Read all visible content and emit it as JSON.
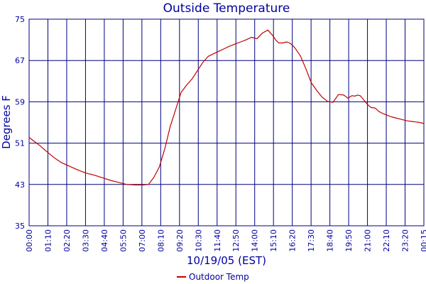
{
  "chart_data": {
    "type": "line",
    "title": "Outside Temperature",
    "xlabel": "10/19/05 (EST)",
    "ylabel": "Degrees F",
    "ylim": [
      35,
      75
    ],
    "yticks": [
      "35",
      "43",
      "51",
      "59",
      "67",
      "75"
    ],
    "xticks": [
      "00:00",
      "01:10",
      "02:20",
      "03:30",
      "04:40",
      "05:50",
      "07:00",
      "08:10",
      "09:20",
      "10:30",
      "11:40",
      "12:50",
      "14:00",
      "15:10",
      "16:20",
      "17:30",
      "18:40",
      "19:50",
      "21:00",
      "22:10",
      "23:20",
      "00:15"
    ],
    "grid": true,
    "legend_position": "bottom-center",
    "series": [
      {
        "name": "Outdoor Temp",
        "color": "#c00000",
        "x_minutes": [
          0,
          20,
          40,
          60,
          80,
          100,
          120,
          150,
          180,
          210,
          240,
          270,
          300,
          330,
          360,
          390,
          420,
          440,
          460,
          480,
          500,
          520,
          540,
          560,
          580,
          600,
          620,
          640,
          660,
          680,
          700,
          720,
          740,
          760,
          780,
          800,
          820,
          840,
          860,
          880,
          900,
          910,
          920,
          935,
          950,
          960,
          970,
          980,
          1000,
          1020,
          1040,
          1060,
          1080,
          1100,
          1120,
          1140,
          1160,
          1175,
          1190,
          1200,
          1210,
          1220,
          1230,
          1245,
          1260,
          1275,
          1290,
          1305,
          1320,
          1335,
          1350,
          1365,
          1380,
          1395,
          1410,
          1425,
          1440,
          1455
        ],
        "values": [
          52.1,
          51.3,
          50.5,
          49.6,
          48.7,
          47.9,
          47.2,
          46.5,
          45.8,
          45.2,
          44.8,
          44.3,
          43.8,
          43.4,
          43.0,
          42.9,
          42.9,
          43.0,
          44.4,
          46.4,
          49.9,
          54.2,
          57.5,
          60.8,
          62.2,
          63.4,
          65.0,
          66.6,
          67.8,
          68.3,
          68.8,
          69.3,
          69.8,
          70.2,
          70.6,
          71.0,
          71.5,
          71.2,
          72.3,
          72.9,
          71.7,
          70.9,
          70.4,
          70.4,
          70.6,
          70.4,
          70.0,
          69.4,
          67.9,
          65.4,
          62.7,
          61.2,
          59.9,
          59.1,
          58.9,
          60.4,
          60.3,
          59.7,
          60.2,
          60.1,
          60.3,
          60.2,
          59.6,
          58.6,
          57.9,
          57.8,
          57.1,
          56.7,
          56.4,
          56.1,
          55.9,
          55.7,
          55.5,
          55.3,
          55.2,
          55.1,
          55.0,
          54.8
        ]
      }
    ]
  }
}
